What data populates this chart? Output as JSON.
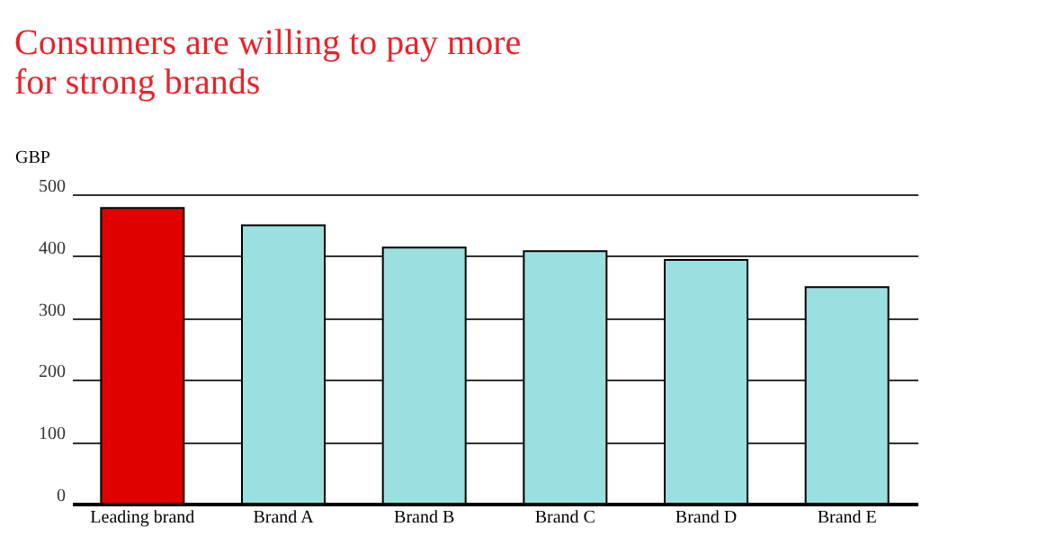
{
  "chart_data": {
    "type": "bar",
    "title": [
      "Consumers are willing to pay more",
      "for strong brands"
    ],
    "ylabel": "GBP",
    "categories": [
      "Leading brand",
      "Brand A",
      "Brand B",
      "Brand C",
      "Brand D",
      "Brand E"
    ],
    "values": [
      478,
      450,
      414,
      408,
      394,
      350
    ],
    "colors": [
      "#e00000",
      "#9ae0e0",
      "#9ae0e0",
      "#9ae0e0",
      "#9ae0e0",
      "#9ae0e0"
    ],
    "ylim": [
      0,
      500
    ],
    "yticks": [
      0,
      100,
      200,
      300,
      400,
      500
    ],
    "grid": "y"
  }
}
